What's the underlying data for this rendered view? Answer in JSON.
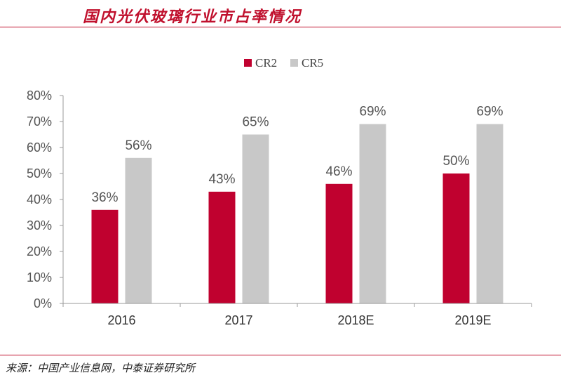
{
  "header": {
    "title": "国内光伏玻璃行业市占率情况"
  },
  "footer": {
    "source": "来源：中国产业信息网，中泰证券研究所"
  },
  "colors": {
    "accent": "#c0102d",
    "cr2": "#c0012f",
    "cr5": "#c8c8c8"
  },
  "chart_data": {
    "type": "bar",
    "title": "国内光伏玻璃行业市占率情况",
    "categories": [
      "2016",
      "2017",
      "2018E",
      "2019E"
    ],
    "series": [
      {
        "name": "CR2",
        "values": [
          36,
          43,
          46,
          50
        ],
        "labels": [
          "36%",
          "43%",
          "46%",
          "50%"
        ]
      },
      {
        "name": "CR5",
        "values": [
          56,
          65,
          69,
          69
        ],
        "labels": [
          "56%",
          "65%",
          "69%",
          "69%"
        ]
      }
    ],
    "yticks": [
      "0%",
      "10%",
      "20%",
      "30%",
      "40%",
      "50%",
      "60%",
      "70%",
      "80%"
    ],
    "ylim": [
      0,
      80
    ],
    "xlabel": "",
    "ylabel": "",
    "legend_position": "top-center",
    "grid": false
  }
}
